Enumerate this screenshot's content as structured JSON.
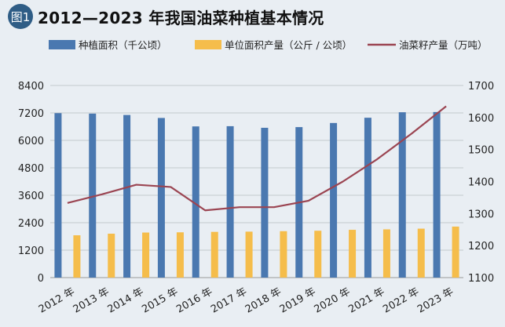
{
  "header": {
    "badge": "图1"
  },
  "chart_data": {
    "type": "bar",
    "title": "2012—2023 年我国油菜种植基本情况",
    "categories": [
      "2012 年",
      "2013 年",
      "2014 年",
      "2015 年",
      "2016 年",
      "2017 年",
      "2018 年",
      "2019 年",
      "2020 年",
      "2021 年",
      "2022 年",
      "2023 年"
    ],
    "series": [
      {
        "name": "种植面积（千公顷）",
        "type": "bar",
        "axis": "left",
        "color": "#4a78b0",
        "values": [
          7190,
          7170,
          7110,
          6980,
          6610,
          6620,
          6550,
          6580,
          6760,
          6990,
          7230,
          7240
        ]
      },
      {
        "name": "单位面积产量（公斤 / 公顷）",
        "type": "bar",
        "axis": "left",
        "color": "#f5bd4b",
        "values": [
          1850,
          1920,
          1970,
          1980,
          2000,
          2010,
          2030,
          2050,
          2090,
          2110,
          2140,
          2230
        ]
      },
      {
        "name": "油菜籽产量（万吨）",
        "type": "line",
        "axis": "right",
        "color": "#9b4552",
        "values": [
          1333,
          1360,
          1390,
          1383,
          1310,
          1320,
          1320,
          1340,
          1400,
          1470,
          1550,
          1635
        ]
      }
    ],
    "y_left": {
      "ticks": [
        "0",
        "1200",
        "2400",
        "3600",
        "4800",
        "6000",
        "7200",
        "8400"
      ],
      "min": 0,
      "max": 8400
    },
    "y_right": {
      "ticks": [
        "1100",
        "1200",
        "1300",
        "1400",
        "1500",
        "1600",
        "1700"
      ],
      "min": 1100,
      "max": 1700
    },
    "grid": "horizontal",
    "legend": "top"
  }
}
